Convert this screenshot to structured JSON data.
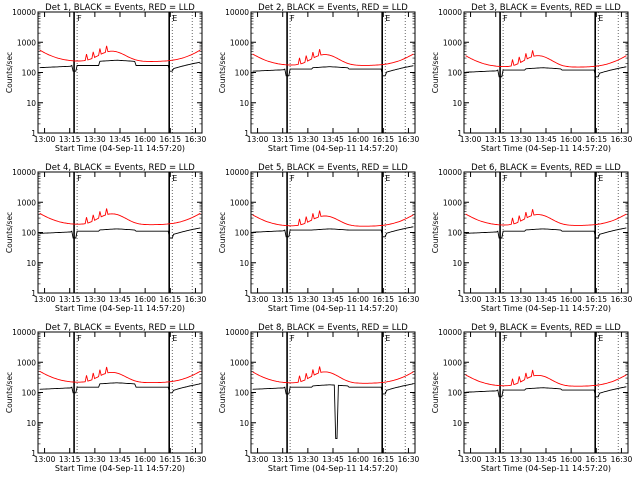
{
  "figure": {
    "xlabel": "Start Time (04-Sep-11 14:57:20)",
    "ylabel": "Counts/sec"
  },
  "chart_data": [
    {
      "type": "line",
      "title": "Det 1, BLACK = Events, RED = LLD",
      "xlabel": "Start Time (04-Sep-11 14:57:20)",
      "ylabel": "Counts/sec",
      "yscale": "log",
      "ylim": [
        1,
        10000
      ],
      "x_ticks": [
        "13:00",
        "13:15",
        "13:30",
        "13:45",
        "16:00",
        "16:15",
        "16:30"
      ],
      "y_ticks": [
        "1",
        "10",
        "100",
        "1000",
        "10000"
      ],
      "series": [
        {
          "name": "BLACK = Events",
          "color": "#000000",
          "base": 170,
          "hump": 1.5,
          "drop": 0.65
        },
        {
          "name": "RED = LLD",
          "color": "#ff0000",
          "base": 230,
          "hump": 2.2
        }
      ],
      "markers": [
        {
          "x": 0.22,
          "label": "F"
        },
        {
          "x": 0.8,
          "label": "E"
        }
      ]
    },
    {
      "type": "line",
      "title": "Det 2, BLACK = Events, RED = LLD",
      "xlabel": "Start Time (04-Sep-11 14:57:20)",
      "ylabel": "Counts/sec",
      "yscale": "log",
      "ylim": [
        1,
        10000
      ],
      "x_ticks": [
        "13:00",
        "13:15",
        "13:30",
        "13:45",
        "16:00",
        "16:15",
        "16:30"
      ],
      "y_ticks": [
        "1",
        "10",
        "100",
        "1000",
        "10000"
      ],
      "series": [
        {
          "name": "BLACK = Events",
          "color": "#000000",
          "base": 130,
          "hump": 1.2,
          "drop": 0.6
        },
        {
          "name": "RED = LLD",
          "color": "#ff0000",
          "base": 170,
          "hump": 2.3
        }
      ],
      "markers": [
        {
          "x": 0.22,
          "label": "F"
        },
        {
          "x": 0.8,
          "label": "E"
        }
      ]
    },
    {
      "type": "line",
      "title": "Det 3, BLACK = Events, RED = LLD",
      "xlabel": "Start Time (04-Sep-11 14:57:20)",
      "ylabel": "Counts/sec",
      "yscale": "log",
      "ylim": [
        1,
        10000
      ],
      "x_ticks": [
        "13:00",
        "13:15",
        "13:30",
        "13:45",
        "16:00",
        "16:15",
        "16:30"
      ],
      "y_ticks": [
        "1",
        "10",
        "100",
        "1000",
        "10000"
      ],
      "series": [
        {
          "name": "BLACK = Events",
          "color": "#000000",
          "base": 120,
          "hump": 1.2,
          "drop": 0.6
        },
        {
          "name": "RED = LLD",
          "color": "#ff0000",
          "base": 150,
          "hump": 2.4
        }
      ],
      "markers": [
        {
          "x": 0.22,
          "label": "F"
        },
        {
          "x": 0.8,
          "label": "E"
        }
      ]
    },
    {
      "type": "line",
      "title": "Det 4, BLACK = Events, RED = LLD",
      "xlabel": "Start Time (04-Sep-11 14:57:20)",
      "ylabel": "Counts/sec",
      "yscale": "log",
      "ylim": [
        1,
        10000
      ],
      "x_ticks": [
        "13:00",
        "13:15",
        "13:30",
        "13:45",
        "16:00",
        "16:15",
        "16:30"
      ],
      "y_ticks": [
        "1",
        "10",
        "100",
        "1000",
        "10000"
      ],
      "series": [
        {
          "name": "BLACK = Events",
          "color": "#000000",
          "base": 110,
          "hump": 1.2,
          "drop": 0.6
        },
        {
          "name": "RED = LLD",
          "color": "#ff0000",
          "base": 180,
          "hump": 2.3
        }
      ],
      "markers": [
        {
          "x": 0.22,
          "label": "F"
        },
        {
          "x": 0.8,
          "label": "E"
        }
      ]
    },
    {
      "type": "line",
      "title": "Det 5, BLACK = Events, RED = LLD",
      "xlabel": "Start Time (04-Sep-11 14:57:20)",
      "ylabel": "Counts/sec",
      "yscale": "log",
      "ylim": [
        1,
        10000
      ],
      "x_ticks": [
        "13:00",
        "13:15",
        "13:30",
        "13:45",
        "16:00",
        "16:15",
        "16:30"
      ],
      "y_ticks": [
        "1",
        "10",
        "100",
        "1000",
        "10000"
      ],
      "series": [
        {
          "name": "BLACK = Events",
          "color": "#000000",
          "base": 120,
          "hump": 1.1,
          "drop": 0.6
        },
        {
          "name": "RED = LLD",
          "color": "#ff0000",
          "base": 160,
          "hump": 2.2
        }
      ],
      "markers": [
        {
          "x": 0.22,
          "label": "F"
        },
        {
          "x": 0.8,
          "label": "E"
        }
      ]
    },
    {
      "type": "line",
      "title": "Det 6, BLACK = Events, RED = LLD",
      "xlabel": "Start Time (04-Sep-11 14:57:20)",
      "ylabel": "Counts/sec",
      "yscale": "log",
      "ylim": [
        1,
        10000
      ],
      "x_ticks": [
        "13:00",
        "13:15",
        "13:30",
        "13:45",
        "16:00",
        "16:15",
        "16:30"
      ],
      "y_ticks": [
        "1",
        "10",
        "100",
        "1000",
        "10000"
      ],
      "series": [
        {
          "name": "BLACK = Events",
          "color": "#000000",
          "base": 110,
          "hump": 1.2,
          "drop": 0.6
        },
        {
          "name": "RED = LLD",
          "color": "#ff0000",
          "base": 170,
          "hump": 2.3
        }
      ],
      "markers": [
        {
          "x": 0.22,
          "label": "F"
        },
        {
          "x": 0.8,
          "label": "E"
        }
      ]
    },
    {
      "type": "line",
      "title": "Det 7, BLACK = Events, RED = LLD",
      "xlabel": "Start Time (04-Sep-11 14:57:20)",
      "ylabel": "Counts/sec",
      "yscale": "log",
      "ylim": [
        1,
        10000
      ],
      "x_ticks": [
        "13:00",
        "13:15",
        "13:30",
        "13:45",
        "16:00",
        "16:15",
        "16:30"
      ],
      "y_ticks": [
        "1",
        "10",
        "100",
        "1000",
        "10000"
      ],
      "series": [
        {
          "name": "BLACK = Events",
          "color": "#000000",
          "base": 150,
          "hump": 1.4,
          "drop": 0.65
        },
        {
          "name": "RED = LLD",
          "color": "#ff0000",
          "base": 210,
          "hump": 2.2
        }
      ],
      "markers": [
        {
          "x": 0.22,
          "label": "F"
        },
        {
          "x": 0.8,
          "label": "E"
        }
      ]
    },
    {
      "type": "line",
      "title": "Det 8, BLACK = Events, RED = LLD",
      "xlabel": "Start Time (04-Sep-11 14:57:20)",
      "ylabel": "Counts/sec",
      "yscale": "log",
      "ylim": [
        1,
        10000
      ],
      "x_ticks": [
        "13:00",
        "13:15",
        "13:30",
        "13:45",
        "16:00",
        "16:15",
        "16:30"
      ],
      "y_ticks": [
        "1",
        "10",
        "100",
        "1000",
        "10000"
      ],
      "series": [
        {
          "name": "BLACK = Events",
          "color": "#000000",
          "base": 150,
          "hump": 1.2,
          "drop": 0.6,
          "spike": {
            "x": 0.52,
            "min": 3
          }
        },
        {
          "name": "RED = LLD",
          "color": "#ff0000",
          "base": 200,
          "hump": 2.4
        }
      ],
      "markers": [
        {
          "x": 0.22,
          "label": "F"
        },
        {
          "x": 0.8,
          "label": "E"
        }
      ]
    },
    {
      "type": "line",
      "title": "Det 9, BLACK = Events, RED = LLD",
      "xlabel": "Start Time (04-Sep-11 14:57:20)",
      "ylabel": "Counts/sec",
      "yscale": "log",
      "ylim": [
        1,
        10000
      ],
      "x_ticks": [
        "13:00",
        "13:15",
        "13:30",
        "13:45",
        "16:00",
        "16:15",
        "16:30"
      ],
      "y_ticks": [
        "1",
        "10",
        "100",
        "1000",
        "10000"
      ],
      "series": [
        {
          "name": "BLACK = Events",
          "color": "#000000",
          "base": 120,
          "hump": 1.2,
          "drop": 0.6
        },
        {
          "name": "RED = LLD",
          "color": "#ff0000",
          "base": 160,
          "hump": 2.3
        }
      ],
      "markers": [
        {
          "x": 0.22,
          "label": "F"
        },
        {
          "x": 0.8,
          "label": "E"
        }
      ]
    }
  ]
}
